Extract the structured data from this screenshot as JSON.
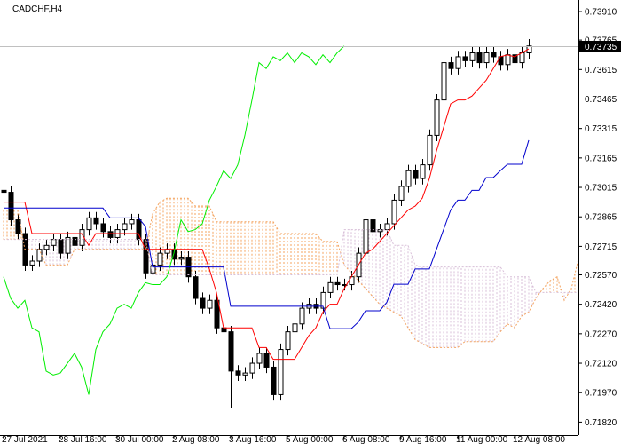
{
  "chart_data": {
    "type": "candlestick",
    "title": "CADCHF,H4",
    "categories": [
      "27 Jul 2021",
      null,
      null,
      null,
      null,
      null,
      null,
      null,
      "28 Jul 16:00",
      null,
      null,
      null,
      null,
      null,
      null,
      null,
      "30 Jul 00:00",
      null,
      null,
      null,
      null,
      null,
      null,
      null,
      "2 Aug 08:00",
      null,
      null,
      null,
      null,
      null,
      null,
      null,
      "3 Aug 16:00",
      null,
      null,
      null,
      null,
      null,
      null,
      null,
      "5 Aug 00:00",
      null,
      null,
      null,
      null,
      null,
      null,
      null,
      "6 Aug 08:00",
      null,
      null,
      null,
      null,
      null,
      null,
      null,
      "9 Aug 16:00",
      null,
      null,
      null,
      null,
      null,
      null,
      null,
      "11 Aug 00:00",
      null,
      null,
      null,
      null,
      null,
      null,
      null,
      "12 Aug 08:00",
      null,
      null,
      null,
      null,
      null,
      null,
      null,
      null,
      null
    ],
    "open": [
      0.73,
      0.7299,
      0.7285,
      0.7278,
      0.7262,
      0.7264,
      0.727,
      0.7272,
      0.7275,
      0.7268,
      0.7276,
      0.7272,
      0.728,
      0.7286,
      0.7283,
      0.7279,
      0.7276,
      0.728,
      0.7283,
      0.7285,
      0.7275,
      0.7258,
      0.7262,
      0.7268,
      0.727,
      0.7265,
      0.7266,
      0.7256,
      0.7245,
      0.724,
      0.7244,
      0.723,
      0.7228,
      0.7208,
      0.7206,
      0.7207,
      0.7212,
      0.7217,
      0.721,
      0.7196,
      0.7219,
      0.7228,
      0.7232,
      0.724,
      0.7242,
      0.724,
      0.7248,
      0.7253,
      0.7252,
      0.7252,
      0.7256,
      0.7268,
      0.7285,
      0.7279,
      0.728,
      0.7283,
      0.7295,
      0.7302,
      0.731,
      0.7306,
      0.7313,
      0.7328,
      0.7346,
      0.7365,
      0.7362,
      0.7368,
      0.7366,
      0.737,
      0.7365,
      0.737,
      0.7368,
      0.7364,
      0.7369,
      0.7365,
      0.737,
      null,
      null,
      null,
      null,
      null,
      null,
      null
    ],
    "high": [
      0.7303,
      0.7302,
      0.7288,
      0.7281,
      0.7267,
      0.7273,
      0.7275,
      0.7278,
      0.7278,
      0.7279,
      0.7279,
      0.7283,
      0.7289,
      0.7289,
      0.7286,
      0.7282,
      0.7283,
      0.7286,
      0.7288,
      0.7288,
      0.7278,
      0.7265,
      0.7271,
      0.7273,
      0.7273,
      0.7269,
      0.7269,
      0.7259,
      0.7248,
      0.7247,
      0.7247,
      0.7233,
      0.7231,
      0.7211,
      0.721,
      0.7215,
      0.722,
      0.722,
      0.7213,
      0.7222,
      0.7231,
      0.7235,
      0.7243,
      0.7245,
      0.7245,
      0.7251,
      0.7256,
      0.7256,
      0.7255,
      0.7259,
      0.7271,
      0.7288,
      0.7288,
      0.7283,
      0.7286,
      0.7298,
      0.7305,
      0.7313,
      0.7313,
      0.7316,
      0.7331,
      0.7349,
      0.7368,
      0.7368,
      0.7371,
      0.7371,
      0.7373,
      0.7373,
      0.7373,
      0.7373,
      0.7371,
      0.7372,
      0.7385,
      0.7373,
      0.7377,
      null,
      null,
      null,
      null,
      null,
      null,
      null
    ],
    "low": [
      0.7296,
      0.7282,
      0.7275,
      0.7259,
      0.7259,
      0.7261,
      0.7267,
      0.7269,
      0.7265,
      0.7265,
      0.7269,
      0.7269,
      0.7277,
      0.728,
      0.7276,
      0.7273,
      0.7273,
      0.7277,
      0.728,
      0.7272,
      0.7255,
      0.7255,
      0.7259,
      0.7265,
      0.7262,
      0.7262,
      0.7253,
      0.7242,
      0.7237,
      0.7237,
      0.7227,
      0.7225,
      0.7189,
      0.7203,
      0.7203,
      0.7204,
      0.7209,
      0.7207,
      0.7193,
      0.7193,
      0.7216,
      0.7225,
      0.7229,
      0.7237,
      0.7237,
      0.7237,
      0.7245,
      0.7249,
      0.7249,
      0.7249,
      0.7253,
      0.7265,
      0.7276,
      0.7276,
      0.7277,
      0.728,
      0.7292,
      0.7299,
      0.7303,
      0.7303,
      0.731,
      0.7325,
      0.7343,
      0.7359,
      0.7359,
      0.7363,
      0.7363,
      0.7362,
      0.7362,
      0.7365,
      0.7361,
      0.7361,
      0.7362,
      0.7362,
      0.7367,
      null,
      null,
      null,
      null,
      null,
      null,
      null
    ],
    "close": [
      0.7299,
      0.7285,
      0.7278,
      0.7262,
      0.7264,
      0.727,
      0.7272,
      0.7275,
      0.7268,
      0.7276,
      0.7272,
      0.728,
      0.7286,
      0.7283,
      0.7279,
      0.7276,
      0.728,
      0.7283,
      0.7285,
      0.7275,
      0.7258,
      0.7262,
      0.7268,
      0.727,
      0.7265,
      0.7266,
      0.7256,
      0.7245,
      0.724,
      0.7244,
      0.723,
      0.7228,
      0.7208,
      0.7206,
      0.7207,
      0.7212,
      0.7217,
      0.721,
      0.7196,
      0.7219,
      0.7228,
      0.7232,
      0.724,
      0.7242,
      0.724,
      0.7248,
      0.7253,
      0.7252,
      0.7252,
      0.7256,
      0.7268,
      0.7285,
      0.7279,
      0.728,
      0.7283,
      0.7295,
      0.7302,
      0.731,
      0.7306,
      0.7313,
      0.7328,
      0.7346,
      0.7365,
      0.7362,
      0.7368,
      0.7366,
      0.737,
      0.7365,
      0.737,
      0.7368,
      0.7364,
      0.7369,
      0.7365,
      0.737,
      0.73735,
      null,
      null,
      null,
      null,
      null,
      null,
      null
    ],
    "bull_color": "#ffffff",
    "bear_color": "#000000",
    "outline_color": "#000000",
    "series": [
      {
        "color": "#ff0000",
        "dashed": false,
        "values": [
          0.7294,
          0.7294,
          0.7294,
          0.7294,
          0.7278,
          0.7278,
          0.7278,
          0.7278,
          0.7278,
          0.7278,
          0.7278,
          0.7278,
          0.7272,
          0.7278,
          0.7278,
          0.7278,
          0.7278,
          0.7278,
          0.7278,
          0.7278,
          0.727,
          0.727,
          0.727,
          0.727,
          0.727,
          0.727,
          0.727,
          0.727,
          0.727,
          0.726,
          0.7248,
          0.723,
          0.723,
          0.723,
          0.723,
          0.723,
          0.722,
          0.722,
          0.7214,
          0.7214,
          0.7214,
          0.7214,
          0.722,
          0.7226,
          0.723,
          0.7238,
          0.7242,
          0.7242,
          0.725,
          0.7256,
          0.7262,
          0.7268,
          0.727,
          0.7274,
          0.7278,
          0.7282,
          0.7286,
          0.729,
          0.7292,
          0.7296,
          0.7306,
          0.732,
          0.7332,
          0.7344,
          0.7346,
          0.7346,
          0.7348,
          0.7352,
          0.7356,
          0.7362,
          0.7368,
          0.7369,
          0.7368,
          0.737,
          0.7372,
          null,
          null,
          null,
          null,
          null,
          null,
          null
        ]
      },
      {
        "color": "#0000cd",
        "dashed": false,
        "values": [
          0.7291,
          0.7291,
          0.7291,
          0.7291,
          0.7291,
          0.7291,
          0.7291,
          0.7291,
          0.7291,
          0.7291,
          0.7291,
          0.7291,
          0.7291,
          0.7291,
          0.7291,
          0.7286,
          0.7286,
          0.7286,
          0.7286,
          0.7286,
          0.72816,
          0.7261,
          0.7261,
          0.7261,
          0.7261,
          0.7261,
          0.7261,
          0.7261,
          0.7261,
          0.7261,
          0.7261,
          0.7261,
          0.7241,
          0.7241,
          0.7241,
          0.7241,
          0.7241,
          0.7241,
          0.7241,
          0.7241,
          0.7241,
          0.7241,
          0.7241,
          0.7241,
          0.7241,
          0.7241,
          0.72296,
          0.72296,
          0.72296,
          0.72296,
          0.7233,
          0.72387,
          0.72387,
          0.72387,
          0.7243,
          0.72522,
          0.72522,
          0.72522,
          0.726,
          0.726,
          0.726,
          0.727,
          0.728,
          0.729,
          0.7295,
          0.7295,
          0.73,
          0.73,
          0.73065,
          0.73065,
          0.731,
          0.73133,
          0.73133,
          0.73133,
          0.73255,
          null,
          null,
          null,
          null,
          null,
          null,
          null
        ]
      },
      {
        "color": "#00ee00",
        "dashed": false,
        "values": [
          0.7256,
          0.7245,
          0.724,
          0.7244,
          0.723,
          0.7228,
          0.7208,
          0.7206,
          0.7207,
          0.7212,
          0.7217,
          0.721,
          0.7196,
          0.7219,
          0.7228,
          0.7232,
          0.724,
          0.7242,
          0.724,
          0.7248,
          0.7253,
          0.7252,
          0.7252,
          0.7256,
          0.7268,
          0.7285,
          0.7279,
          0.728,
          0.7283,
          0.7295,
          0.7302,
          0.731,
          0.7306,
          0.7313,
          0.7328,
          0.7346,
          0.7365,
          0.7362,
          0.7368,
          0.7366,
          0.737,
          0.7365,
          0.737,
          0.7368,
          0.7364,
          0.7369,
          0.7365,
          0.737,
          0.73735,
          null,
          null,
          null,
          null,
          null,
          null,
          null,
          null,
          null,
          null,
          null,
          null,
          null,
          null,
          null,
          null,
          null,
          null,
          null,
          null,
          null,
          null,
          null,
          null,
          null,
          null,
          null,
          null,
          null,
          null,
          null,
          null,
          null
        ]
      },
      {
        "color": "#f4a460",
        "dashed": true,
        "values": [
          0.729,
          0.729,
          0.729,
          0.727,
          0.727,
          0.727,
          0.7262,
          0.7262,
          0.7262,
          0.7262,
          0.727,
          0.727,
          0.727,
          0.727,
          0.727,
          0.727,
          0.727,
          0.727,
          0.727,
          0.727,
          0.727,
          0.7288,
          0.7294,
          0.7296,
          0.7296,
          0.7296,
          0.7296,
          0.7292,
          0.7292,
          0.7292,
          0.7284,
          0.7284,
          0.7284,
          0.7284,
          0.7284,
          0.7284,
          0.7284,
          0.7284,
          0.7284,
          0.7278,
          0.7278,
          0.7278,
          0.7278,
          0.7278,
          0.7278,
          0.7274,
          0.7274,
          0.7274,
          0.7262,
          0.7258,
          0.7254,
          0.725,
          0.7246,
          0.7242,
          0.724,
          0.7238,
          0.7236,
          0.723,
          0.7224,
          0.7222,
          0.722,
          0.722,
          0.722,
          0.722,
          0.722,
          0.7223,
          0.7223,
          0.7223,
          0.7223,
          0.7223,
          0.7228,
          0.7232,
          0.723,
          0.7236,
          0.7238,
          0.7245,
          0.725,
          0.7254,
          0.7256,
          0.7244,
          0.725,
          0.7265
        ]
      },
      {
        "color": "#d8bfd8",
        "dashed": true,
        "values": [
          0.7275,
          0.7275,
          0.7275,
          0.7275,
          0.7275,
          0.7275,
          0.7275,
          0.7275,
          0.7275,
          0.7275,
          0.7275,
          0.7275,
          0.7275,
          0.7275,
          0.7275,
          0.7275,
          0.7275,
          0.7275,
          0.7275,
          0.7275,
          0.7275,
          0.7257,
          0.7257,
          0.7257,
          0.7257,
          0.7257,
          0.7257,
          0.7257,
          0.7257,
          0.7257,
          0.7257,
          0.7257,
          0.7257,
          0.7257,
          0.7257,
          0.7257,
          0.7257,
          0.7257,
          0.7257,
          0.7257,
          0.7257,
          0.7257,
          0.7257,
          0.7257,
          0.7257,
          0.7257,
          0.7257,
          0.7257,
          0.728,
          0.728,
          0.728,
          0.728,
          0.728,
          0.728,
          0.728,
          0.7272,
          0.7272,
          0.7272,
          0.7262,
          0.7261,
          0.7261,
          0.7261,
          0.7261,
          0.7261,
          0.7261,
          0.7261,
          0.7261,
          0.7261,
          0.7261,
          0.7261,
          0.7261,
          0.7256,
          0.7256,
          0.7256,
          0.7256,
          0.7248,
          0.7248,
          0.7248,
          0.7248,
          0.7248,
          0.7248,
          0.7248
        ]
      }
    ],
    "cloud": [
      3,
      4
    ],
    "last_price": 0.73735,
    "last_price_color": "#c0c0c0",
    "ylim": [
      0.71754,
      0.73969
    ],
    "yticks": [
      {
        "value": 0.7391,
        "label": "0.73910"
      },
      0.73765,
      0.73615,
      0.73465,
      0.73315,
      0.73165,
      0.73015,
      0.72865,
      0.72715,
      {
        "value": 0.7257,
        "label": "0.72570"
      },
      {
        "value": 0.7242,
        "label": "0.72420"
      },
      {
        "value": 0.7227,
        "label": "0.72270"
      },
      {
        "value": 0.7212,
        "label": "0.72120"
      },
      {
        "value": 0.7197,
        "label": "0.71970"
      },
      {
        "value": 0.7182,
        "label": "0.71820"
      }
    ],
    "grid": false
  }
}
